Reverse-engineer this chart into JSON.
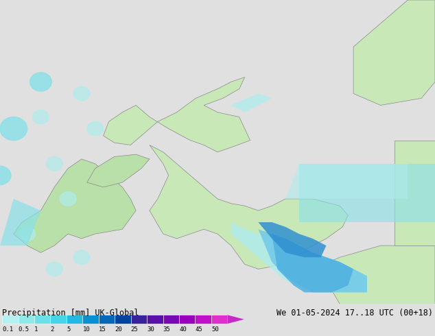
{
  "title_left": "Precipitation [mm] UK-Global",
  "title_right": "We 01-05-2024 17..18 UTC (00+18)",
  "colorbar_ticks": [
    "0.1",
    "0.5",
    "1",
    "2",
    "5",
    "10",
    "15",
    "20",
    "25",
    "30",
    "35",
    "40",
    "45",
    "50"
  ],
  "colorbar_colors": [
    "#b4f0f0",
    "#90e8e8",
    "#6ce0e8",
    "#48d4e8",
    "#24b8e4",
    "#0890d0",
    "#0868b8",
    "#0044a0",
    "#382498",
    "#5810a8",
    "#7808b4",
    "#9800bc",
    "#c010c8",
    "#e030cc"
  ],
  "arrow_color": "#c828c8",
  "bg_color": "#e0e0e0",
  "sea_color": "#e8e8e8",
  "land_color": "#c8e8b8",
  "land_color2": "#b8e0a8",
  "precip_cyan1": "#b0ecec",
  "precip_cyan2": "#88e0e8",
  "precip_blue1": "#70c8e8",
  "precip_blue2": "#50b0e0",
  "precip_blue3": "#3090d0",
  "fig_width": 6.34,
  "fig_height": 4.9,
  "dpi": 100
}
